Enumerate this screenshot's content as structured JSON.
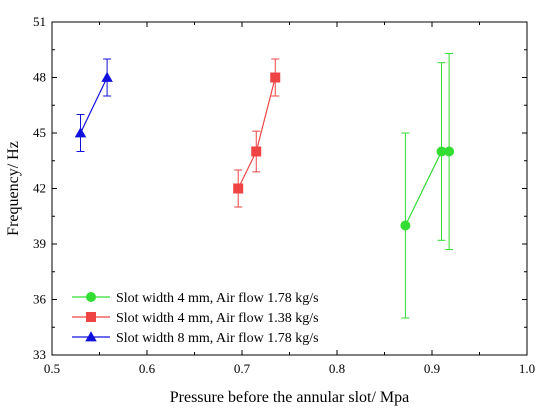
{
  "chart_data": {
    "type": "scatter",
    "xlabel": "Pressure before the annular slot/ Mpa",
    "ylabel": "Frequency/ Hz",
    "xlim": [
      0.5,
      1.0
    ],
    "ylim": [
      33,
      51
    ],
    "xticks": [
      "0.5",
      "0.6",
      "0.7",
      "0.8",
      "0.9",
      "1.0"
    ],
    "yticks": [
      "33",
      "36",
      "39",
      "42",
      "45",
      "48",
      "51"
    ],
    "grid": false,
    "legend_position": "bottom-left",
    "series": [
      {
        "name": "Slot width 4 mm, Air flow 1.78 kg/s",
        "color": "#33dd33",
        "marker": "circle",
        "points": [
          {
            "x": 0.872,
            "y": 40,
            "err": 5
          },
          {
            "x": 0.91,
            "y": 44,
            "err": 4.8
          },
          {
            "x": 0.918,
            "y": 44,
            "err": 5.3
          }
        ]
      },
      {
        "name": "Slot width 4 mm, Air flow 1.38 kg/s",
        "color": "#ee4444",
        "marker": "square",
        "points": [
          {
            "x": 0.696,
            "y": 42,
            "err": 1
          },
          {
            "x": 0.715,
            "y": 44,
            "err": 1.1
          },
          {
            "x": 0.735,
            "y": 48,
            "err": 1
          }
        ]
      },
      {
        "name": "Slot width 8 mm, Air flow 1.78 kg/s",
        "color": "#1111dd",
        "marker": "triangle",
        "points": [
          {
            "x": 0.53,
            "y": 45,
            "err": 1
          },
          {
            "x": 0.558,
            "y": 48,
            "err": 1
          }
        ]
      }
    ]
  }
}
